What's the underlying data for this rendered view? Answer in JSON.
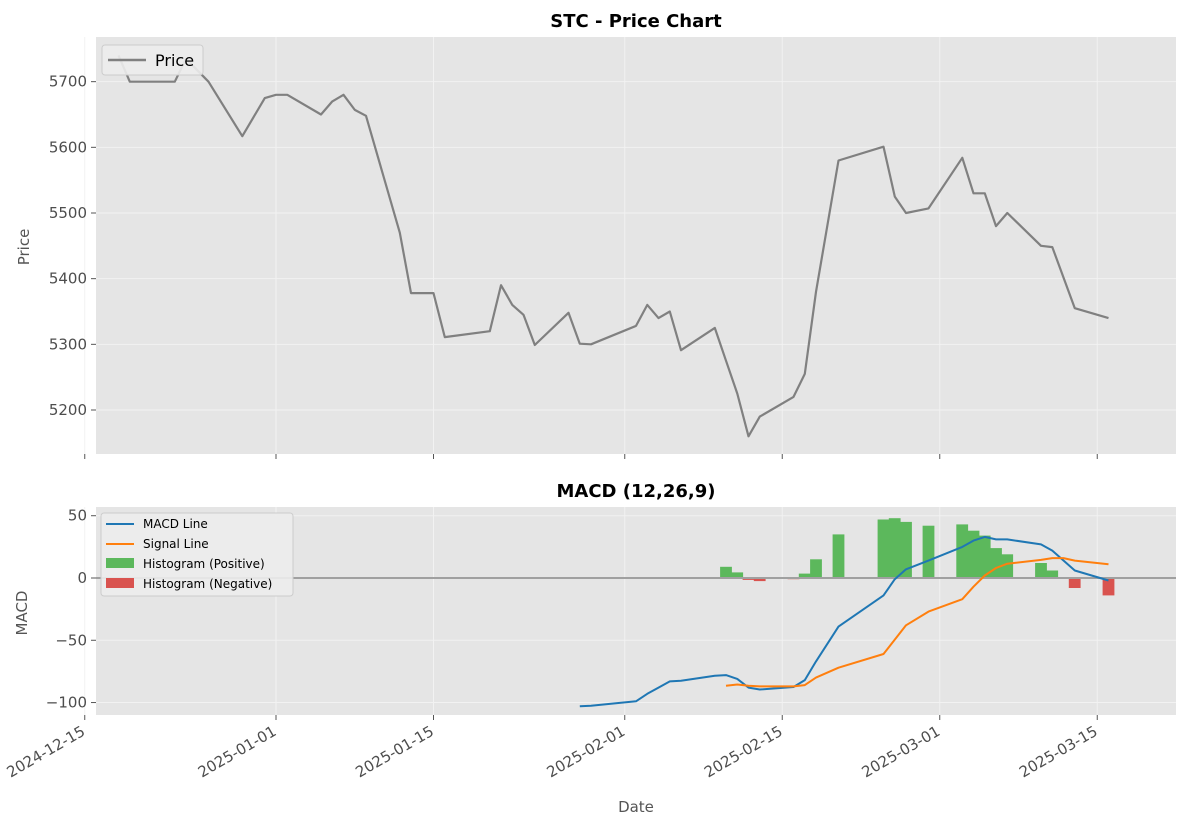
{
  "chart_data": [
    {
      "type": "line",
      "title": "STC - Price Chart",
      "xlabel": "",
      "ylabel": "Price",
      "ylim": [
        5133,
        5768
      ],
      "yticks": [
        5200,
        5300,
        5400,
        5500,
        5600,
        5700
      ],
      "grid": true,
      "legend_position": "top-left",
      "series": [
        {
          "name": "Price",
          "color": "#808080",
          "points": [
            [
              "2024-12-18",
              5740
            ],
            [
              "2024-12-19",
              5700
            ],
            [
              "2024-12-22",
              5700
            ],
            [
              "2024-12-23",
              5700
            ],
            [
              "2024-12-24",
              5735
            ],
            [
              "2024-12-26",
              5700
            ],
            [
              "2024-12-29",
              5617
            ],
            [
              "2024-12-31",
              5675
            ],
            [
              "2025-01-01",
              5680
            ],
            [
              "2025-01-02",
              5680
            ],
            [
              "2025-01-05",
              5650
            ],
            [
              "2025-01-06",
              5670
            ],
            [
              "2025-01-07",
              5680
            ],
            [
              "2025-01-08",
              5657
            ],
            [
              "2025-01-09",
              5648
            ],
            [
              "2025-01-12",
              5470
            ],
            [
              "2025-01-13",
              5378
            ],
            [
              "2025-01-15",
              5378
            ],
            [
              "2025-01-16",
              5311
            ],
            [
              "2025-01-20",
              5320
            ],
            [
              "2025-01-21",
              5390
            ],
            [
              "2025-01-22",
              5360
            ],
            [
              "2025-01-23",
              5345
            ],
            [
              "2025-01-24",
              5299
            ],
            [
              "2025-01-27",
              5348
            ],
            [
              "2025-01-28",
              5301
            ],
            [
              "2025-01-29",
              5300
            ],
            [
              "2025-02-02",
              5328
            ],
            [
              "2025-02-03",
              5360
            ],
            [
              "2025-02-04",
              5340
            ],
            [
              "2025-02-05",
              5350
            ],
            [
              "2025-02-06",
              5291
            ],
            [
              "2025-02-09",
              5325
            ],
            [
              "2025-02-10",
              5275
            ],
            [
              "2025-02-11",
              5225
            ],
            [
              "2025-02-12",
              5160
            ],
            [
              "2025-02-13",
              5190
            ],
            [
              "2025-02-16",
              5220
            ],
            [
              "2025-02-17",
              5255
            ],
            [
              "2025-02-18",
              5380
            ],
            [
              "2025-02-20",
              5580
            ],
            [
              "2025-02-24",
              5601
            ],
            [
              "2025-02-25",
              5525
            ],
            [
              "2025-02-26",
              5500
            ],
            [
              "2025-02-28",
              5507
            ],
            [
              "2025-03-03",
              5584
            ],
            [
              "2025-03-04",
              5530
            ],
            [
              "2025-03-05",
              5530
            ],
            [
              "2025-03-06",
              5480
            ],
            [
              "2025-03-07",
              5500
            ],
            [
              "2025-03-10",
              5450
            ],
            [
              "2025-03-11",
              5448
            ],
            [
              "2025-03-13",
              5355
            ],
            [
              "2025-03-16",
              5340
            ]
          ]
        }
      ]
    },
    {
      "type": "line",
      "title": "MACD (12,26,9)",
      "xlabel": "Date",
      "ylabel": "MACD",
      "ylim": [
        -110,
        57
      ],
      "yticks": [
        -100,
        -50,
        0,
        50
      ],
      "xlim": [
        "2024-12-16",
        "2025-03-22"
      ],
      "xticks": [
        "2024-12-15",
        "2025-01-01",
        "2025-01-15",
        "2025-02-01",
        "2025-02-15",
        "2025-03-01",
        "2025-03-15"
      ],
      "grid": true,
      "legend_position": "top-left",
      "zero_line_color": "#a0a0a0",
      "series": [
        {
          "name": "MACD Line",
          "color": "#1f77b4",
          "points": [
            [
              "2025-01-28",
              -103
            ],
            [
              "2025-01-29",
              -102.5
            ],
            [
              "2025-02-02",
              -99
            ],
            [
              "2025-02-03",
              -93
            ],
            [
              "2025-02-04",
              -88
            ],
            [
              "2025-02-05",
              -83
            ],
            [
              "2025-02-06",
              -82.5
            ],
            [
              "2025-02-09",
              -78.5
            ],
            [
              "2025-02-10",
              -78
            ],
            [
              "2025-02-11",
              -81
            ],
            [
              "2025-02-12",
              -88
            ],
            [
              "2025-02-13",
              -89.5
            ],
            [
              "2025-02-16",
              -87.5
            ],
            [
              "2025-02-17",
              -82
            ],
            [
              "2025-02-18",
              -67
            ],
            [
              "2025-02-20",
              -39
            ],
            [
              "2025-02-24",
              -14
            ],
            [
              "2025-02-25",
              -1
            ],
            [
              "2025-02-26",
              7
            ],
            [
              "2025-02-28",
              14
            ],
            [
              "2025-03-03",
              25
            ],
            [
              "2025-03-04",
              30
            ],
            [
              "2025-03-05",
              33
            ],
            [
              "2025-03-06",
              31
            ],
            [
              "2025-03-07",
              31
            ],
            [
              "2025-03-10",
              27
            ],
            [
              "2025-03-11",
              22
            ],
            [
              "2025-03-13",
              6
            ],
            [
              "2025-03-16",
              -2
            ]
          ]
        },
        {
          "name": "Signal Line",
          "color": "#ff7f0e",
          "points": [
            [
              "2025-02-10",
              -86.5
            ],
            [
              "2025-02-11",
              -85.5
            ],
            [
              "2025-02-12",
              -86.5
            ],
            [
              "2025-02-13",
              -87
            ],
            [
              "2025-02-16",
              -87
            ],
            [
              "2025-02-17",
              -86
            ],
            [
              "2025-02-18",
              -80
            ],
            [
              "2025-02-20",
              -72
            ],
            [
              "2025-02-24",
              -61
            ],
            [
              "2025-02-26",
              -38
            ],
            [
              "2025-02-28",
              -27
            ],
            [
              "2025-03-03",
              -17
            ],
            [
              "2025-03-04",
              -7
            ],
            [
              "2025-03-05",
              2
            ],
            [
              "2025-03-06",
              8
            ],
            [
              "2025-03-07",
              11.5
            ],
            [
              "2025-03-10",
              14.5
            ],
            [
              "2025-03-11",
              16
            ],
            [
              "2025-03-12",
              16
            ],
            [
              "2025-03-13",
              14
            ],
            [
              "2025-03-16",
              11
            ]
          ]
        },
        {
          "name": "Histogram (Positive)",
          "color": "#5cb85c",
          "bars": [
            [
              "2025-02-10",
              9
            ],
            [
              "2025-02-11",
              4.5
            ],
            [
              "2025-02-17",
              3.5
            ],
            [
              "2025-02-18",
              15
            ],
            [
              "2025-02-20",
              35
            ],
            [
              "2025-02-24",
              47
            ],
            [
              "2025-02-25",
              48
            ],
            [
              "2025-02-26",
              45
            ],
            [
              "2025-02-28",
              42
            ],
            [
              "2025-03-03",
              43
            ],
            [
              "2025-03-04",
              38
            ],
            [
              "2025-03-05",
              34
            ],
            [
              "2025-03-06",
              24
            ],
            [
              "2025-03-07",
              19
            ],
            [
              "2025-03-10",
              12
            ],
            [
              "2025-03-11",
              6
            ]
          ]
        },
        {
          "name": "Histogram (Negative)",
          "color": "#d9534f",
          "bars": [
            [
              "2025-02-12",
              -1.5
            ],
            [
              "2025-02-13",
              -2.5
            ],
            [
              "2025-02-16",
              -1
            ],
            [
              "2025-03-13",
              -8
            ],
            [
              "2025-03-16",
              -14
            ]
          ]
        }
      ]
    }
  ]
}
